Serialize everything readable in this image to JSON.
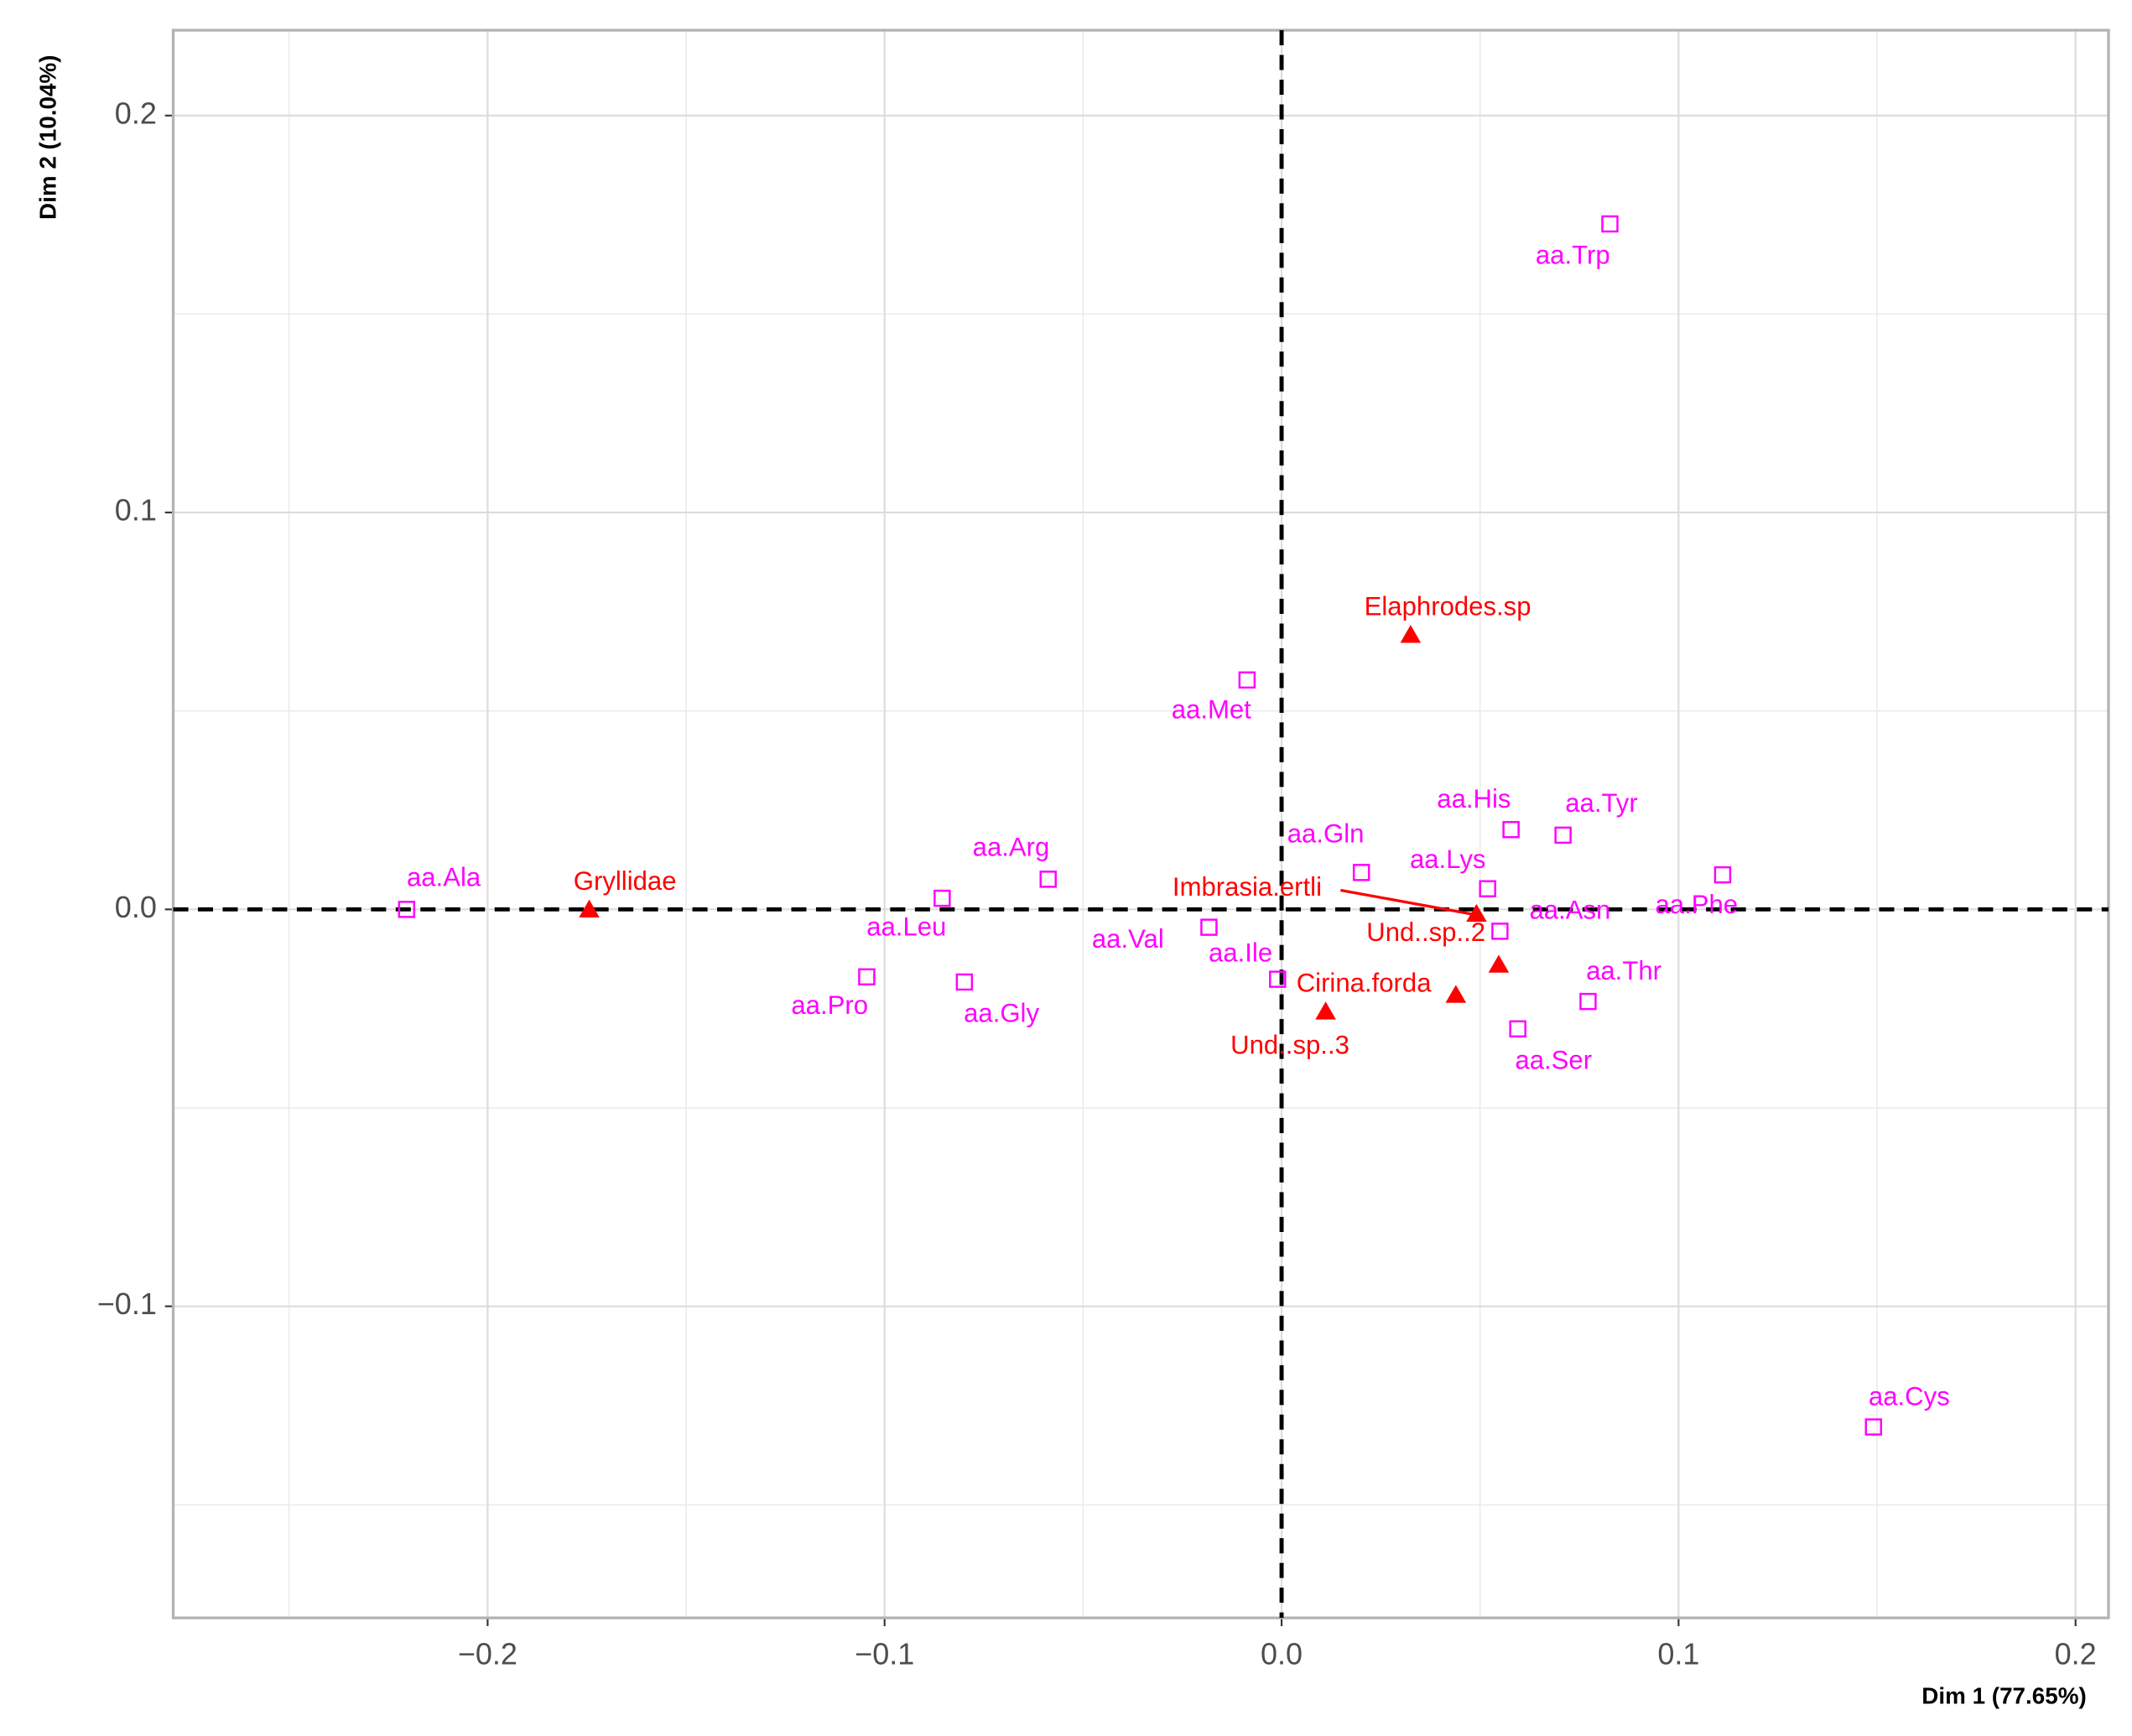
{
  "chart_data": {
    "type": "scatter",
    "x_label": "Dim 1 (77.65%)",
    "y_label": "Dim 2 (10.04%)",
    "xlim": [
      -0.2792,
      0.2083
    ],
    "ylim": [
      -0.1785,
      0.2215
    ],
    "xticks": [
      {
        "value": -0.2,
        "label": "−0.2"
      },
      {
        "value": -0.1,
        "label": "−0.1"
      },
      {
        "value": 0,
        "label": "0.0"
      },
      0.1,
      0.2
    ],
    "yticks": [
      {
        "value": -0.1,
        "label": "−0.1"
      },
      {
        "value": 0,
        "label": "0.0"
      },
      0.1,
      0.2
    ],
    "grid": true,
    "hline": 0,
    "vline": 0,
    "series": [
      {
        "color": "#ff00ff",
        "marker": "square",
        "labels": [
          "aa.Ala",
          "aa.Leu",
          "aa.Arg",
          "aa.Pro",
          "aa.Gly",
          "aa.Val",
          "aa.Ile",
          "aa.Met",
          "aa.Gln",
          "aa.Lys",
          "aa.His",
          "aa.Tyr",
          "aa.Asn",
          "aa.Phe",
          "aa.Thr",
          "aa.Ser",
          "aa.Trp",
          "aa.Cys"
        ],
        "x": [
          -0.2204,
          -0.0855,
          -0.0588,
          -0.1045,
          -0.0799,
          -0.0183,
          -0.001,
          -0.0087,
          0.0201,
          0.0519,
          0.0578,
          0.0709,
          0.055,
          0.1111,
          0.0772,
          0.0595,
          0.0827,
          0.1491
        ],
        "values": [
          0.0,
          0.0028,
          0.0076,
          -0.017,
          -0.0183,
          -0.0045,
          -0.0176,
          0.0578,
          0.0093,
          0.0052,
          0.0201,
          0.0187,
          -0.0055,
          0.0087,
          -0.0232,
          -0.0301,
          0.1727,
          -0.1304
        ]
      },
      {
        "color": "#ff0000",
        "marker": "triangle",
        "labels": [
          "Gryllidae",
          "Elaphrodes.sp",
          "Imbrasia.ertli",
          "Und..sp..2",
          "Cirina.forda",
          "Und..sp..3"
        ],
        "x": [
          -0.1744,
          0.0325,
          0.0491,
          0.0547,
          0.0439,
          0.0111
        ],
        "values": [
          -0.0003,
          0.0689,
          -0.0014,
          -0.0142,
          -0.0218,
          -0.026
        ]
      }
    ]
  }
}
